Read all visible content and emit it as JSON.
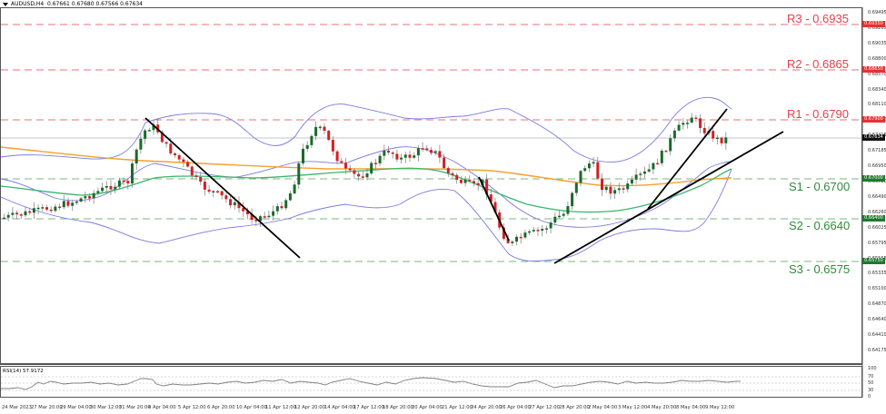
{
  "header": {
    "symbol": "AUDUSD,H4",
    "ohlc": "0.67661 0.67680 0.67566 0.67634"
  },
  "rsi": {
    "label": "RSI(14) 57.9172",
    "axis": [
      "100",
      "70",
      "50",
      "30",
      "0"
    ]
  },
  "levels": {
    "r3": {
      "label": "R3 - 0.6935",
      "tag": "0.69350"
    },
    "r2": {
      "label": "R2 - 0.6865",
      "tag": "0.68650"
    },
    "r1": {
      "label": "R1 - 0.6790",
      "tag": "0.67900"
    },
    "s1": {
      "label": "S1 - 0.6700",
      "tag": "0.67000"
    },
    "s2": {
      "label": "S2 - 0.6640",
      "tag": "0.66400"
    },
    "s3": {
      "label": "S3 - 0.6575",
      "tag": "0.65750"
    },
    "current": {
      "tag": "0.67634"
    }
  },
  "price_axis": [
    "0.69495",
    "0.69265",
    "0.69035",
    "0.68800",
    "0.68570",
    "0.68340",
    "0.68110",
    "0.67880",
    "0.67415",
    "0.67185",
    "0.66950",
    "0.66720",
    "0.66490",
    "0.66260",
    "0.66025",
    "0.65795",
    "0.65565",
    "0.65335",
    "0.65100",
    "0.64870",
    "0.64640",
    "0.64410",
    "0.64175"
  ],
  "time_axis": [
    "24 Mar 2023",
    "27 Mar 20:00",
    "29 Mar 04:00",
    "30 Mar 12:00",
    "31 Mar 20:00",
    "4 Apr 04:00",
    "5 Apr 12:00",
    "6 Apr 20:00",
    "10 Apr 04:00",
    "11 Apr 12:00",
    "12 Apr 20:00",
    "14 Apr 04:00",
    "17 Apr 12:00",
    "18 Apr 20:00",
    "20 Apr 04:00",
    "21 Apr 12:00",
    "24 Apr 20:00",
    "26 Apr 04:00",
    "27 Apr 12:00",
    "28 Apr 20:00",
    "2 May 04:00",
    "3 May 12:00",
    "4 May 20:00",
    "8 May 04:00",
    "9 May 12:00"
  ],
  "colors": {
    "bull": "#1a6b2a",
    "bear": "#d42020",
    "bollinger": "#7a7ae0",
    "ma_orange": "#f5a030",
    "ma_green": "#3cb46e",
    "resistance": "#e8404a",
    "support": "#5aaa5a",
    "trendline": "#000000",
    "rsi": "#777777"
  },
  "chart_data": {
    "type": "candlestick",
    "title": "AUDUSD,H4",
    "subtitle": "0.67661 0.67680 0.67566 0.67634",
    "xlabel": "",
    "ylabel": "",
    "ylim": [
      0.6415,
      0.6955
    ],
    "grid": false,
    "indicators": [
      "Bollinger Bands",
      "Moving Average (orange, long)",
      "Moving Average (green, short)",
      "RSI(14)"
    ],
    "horizontal_levels": [
      {
        "name": "R3",
        "value": 0.6935,
        "color": "red"
      },
      {
        "name": "R2",
        "value": 0.6865,
        "color": "red"
      },
      {
        "name": "R1",
        "value": 0.679,
        "color": "red"
      },
      {
        "name": "S1",
        "value": 0.67,
        "color": "green"
      },
      {
        "name": "S2",
        "value": 0.664,
        "color": "green"
      },
      {
        "name": "S3",
        "value": 0.6575,
        "color": "green"
      }
    ],
    "current_price": 0.67634,
    "categories": [
      "24 Mar 2023",
      "27 Mar 20:00",
      "29 Mar 04:00",
      "30 Mar 12:00",
      "31 Mar 20:00",
      "4 Apr 04:00",
      "5 Apr 12:00",
      "6 Apr 20:00",
      "10 Apr 04:00",
      "11 Apr 12:00",
      "12 Apr 20:00",
      "14 Apr 04:00",
      "17 Apr 12:00",
      "18 Apr 20:00",
      "20 Apr 04:00",
      "21 Apr 12:00",
      "24 Apr 20:00",
      "26 Apr 04:00",
      "27 Apr 12:00",
      "28 Apr 20:00",
      "2 May 04:00",
      "3 May 12:00",
      "4 May 20:00",
      "8 May 04:00",
      "9 May 12:00"
    ],
    "close_approx": [
      0.666,
      0.669,
      0.6712,
      0.672,
      0.6705,
      0.6785,
      0.6735,
      0.6695,
      0.666,
      0.6645,
      0.672,
      0.678,
      0.6705,
      0.672,
      0.6745,
      0.67,
      0.668,
      0.662,
      0.66,
      0.665,
      0.669,
      0.668,
      0.672,
      0.679,
      0.6763
    ],
    "rsi_approx": [
      45,
      48,
      52,
      55,
      52,
      66,
      55,
      47,
      44,
      42,
      60,
      66,
      50,
      55,
      60,
      48,
      44,
      35,
      33,
      50,
      56,
      55,
      62,
      70,
      58
    ],
    "rsi_levels": [
      70,
      50,
      30
    ],
    "rsi_range": [
      0,
      100
    ],
    "rsi_value": 57.9172,
    "trendlines": [
      {
        "from": [
          "4 Apr 04:00",
          0.679
        ],
        "to": [
          "11 Apr 12:00",
          0.658
        ],
        "type": "downtrend"
      },
      {
        "from": [
          "26 Apr 04:00",
          0.6695
        ],
        "to": [
          "27 Apr 12:00",
          0.6605
        ],
        "type": "downtrend"
      },
      {
        "from": [
          "27 Apr 12:00",
          0.6575
        ],
        "to": [
          "9 May 12:00+",
          0.677
        ],
        "type": "uptrend"
      },
      {
        "from": [
          "3 May 12:00",
          0.666
        ],
        "to": [
          "8 May 04:00",
          0.68
        ],
        "type": "uptrend-steep"
      }
    ]
  }
}
